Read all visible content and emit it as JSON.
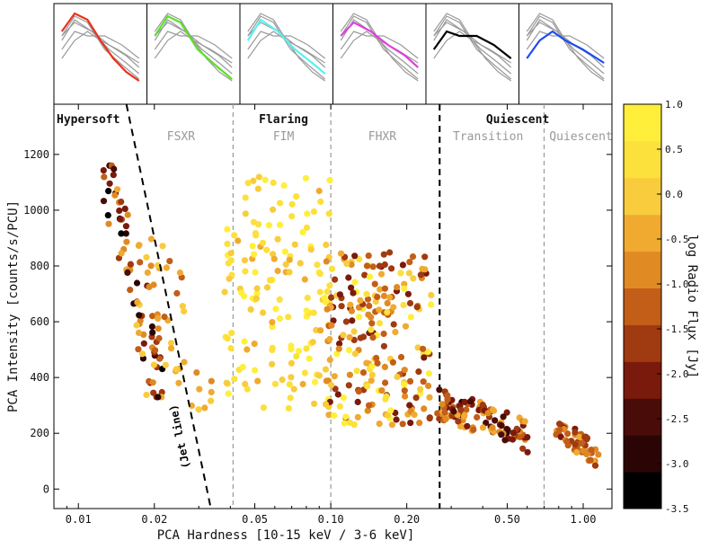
{
  "chart_data": {
    "type": "scatter",
    "title": "",
    "xlabel": "PCA Hardness [10-15 keV / 3-6 keV]",
    "ylabel": "PCA Intensity [counts/s/PCU]",
    "x_scale": "log",
    "xlim": [
      0.008,
      1.3
    ],
    "ylim": [
      -70,
      1380
    ],
    "x_ticks": [
      0.01,
      0.02,
      0.05,
      0.1,
      0.2,
      0.5,
      1.0
    ],
    "x_tick_labels": [
      "0.01",
      "0.02",
      "0.05",
      "0.10",
      "0.20",
      "0.50",
      "1.00"
    ],
    "y_ticks": [
      0,
      200,
      400,
      600,
      800,
      1000,
      1200
    ],
    "y_tick_labels": [
      "0",
      "200",
      "400",
      "600",
      "800",
      "1000",
      "1200"
    ],
    "colorbar": {
      "label": "log Radio Flux [Jy]",
      "min": -3.5,
      "max": 1.0,
      "ticks": [
        1.0,
        0.5,
        0.0,
        -0.5,
        -1.0,
        -1.5,
        -2.0,
        -2.5,
        -3.0,
        -3.5
      ],
      "tick_labels": [
        "1.0",
        "0.5",
        "0.0",
        "-0.5",
        "-1.0",
        "-1.5",
        "-2.0",
        "-2.5",
        "-3.0",
        "-3.5"
      ],
      "colors": [
        "#000000",
        "#2b0505",
        "#4a0c08",
        "#7a1a0c",
        "#a03a10",
        "#c25e18",
        "#e08a24",
        "#f0aa30",
        "#f8cc3c",
        "#fce03c",
        "#ffef3a"
      ]
    },
    "jet_line": {
      "label": "(Jet line)",
      "x": [
        0.0155,
        0.0335
      ],
      "y": [
        1380,
        -70
      ]
    },
    "state_boundaries": [
      {
        "x": 0.041,
        "style": "thin"
      },
      {
        "x": 0.1,
        "style": "thin"
      },
      {
        "x": 0.27,
        "style": "thick"
      },
      {
        "x": 0.7,
        "style": "thin"
      }
    ],
    "state_groups": [
      {
        "label": "Hypersoft",
        "x": 0.0105
      },
      {
        "label": "Flaring",
        "x": 0.065
      },
      {
        "label": "Quiescent",
        "x": 0.55
      }
    ],
    "state_labels": [
      {
        "label": "FSXR",
        "x": 0.0255
      },
      {
        "label": "FIM",
        "x": 0.065
      },
      {
        "label": "FHXR",
        "x": 0.16
      },
      {
        "label": "Transition",
        "x": 0.42
      },
      {
        "label": "Quiescent",
        "x": 0.98
      }
    ],
    "clusters": [
      {
        "name": "hypersoft",
        "x_range": [
          0.0125,
          0.0215
        ],
        "y_range": [
          330,
          1160
        ],
        "slope": -0.9,
        "n": 70,
        "radio_range": [
          -3.2,
          -0.4
        ]
      },
      {
        "name": "fsxr",
        "x_range": [
          0.017,
          0.027
        ],
        "y_range": [
          330,
          900
        ],
        "slope": 0,
        "n": 40,
        "radio_range": [
          -1.2,
          0.2
        ]
      },
      {
        "name": "fsxr-tail",
        "x_range": [
          0.028,
          0.034
        ],
        "y_range": [
          250,
          460
        ],
        "slope": 0,
        "n": 8,
        "radio_range": [
          -0.8,
          0.0
        ]
      },
      {
        "name": "fim",
        "x_range": [
          0.038,
          0.1
        ],
        "y_range": [
          280,
          1120
        ],
        "slope": 0,
        "n": 150,
        "radio_range": [
          -0.4,
          0.9
        ]
      },
      {
        "name": "fhxr",
        "x_range": [
          0.095,
          0.25
        ],
        "y_range": [
          230,
          850
        ],
        "slope": 0,
        "n": 220,
        "radio_range": [
          -2.2,
          0.9
        ]
      },
      {
        "name": "transition",
        "x_range": [
          0.26,
          0.62
        ],
        "y_range": [
          120,
          380
        ],
        "slope": -0.5,
        "n": 110,
        "radio_range": [
          -2.8,
          -0.2
        ]
      },
      {
        "name": "quiescent",
        "x_range": [
          0.78,
          1.15
        ],
        "y_range": [
          80,
          260
        ],
        "slope": -0.6,
        "n": 55,
        "radio_range": [
          -2.0,
          -0.5
        ]
      }
    ],
    "spectra_panels": [
      {
        "name": "hypersoft",
        "color": "#e8321e"
      },
      {
        "name": "fsxr",
        "color": "#5ce02a"
      },
      {
        "name": "fim",
        "color": "#5af0f0"
      },
      {
        "name": "fhxr",
        "color": "#e040e0"
      },
      {
        "name": "transition",
        "color": "#000000"
      },
      {
        "name": "quiescent",
        "color": "#1c4cf0"
      }
    ]
  }
}
